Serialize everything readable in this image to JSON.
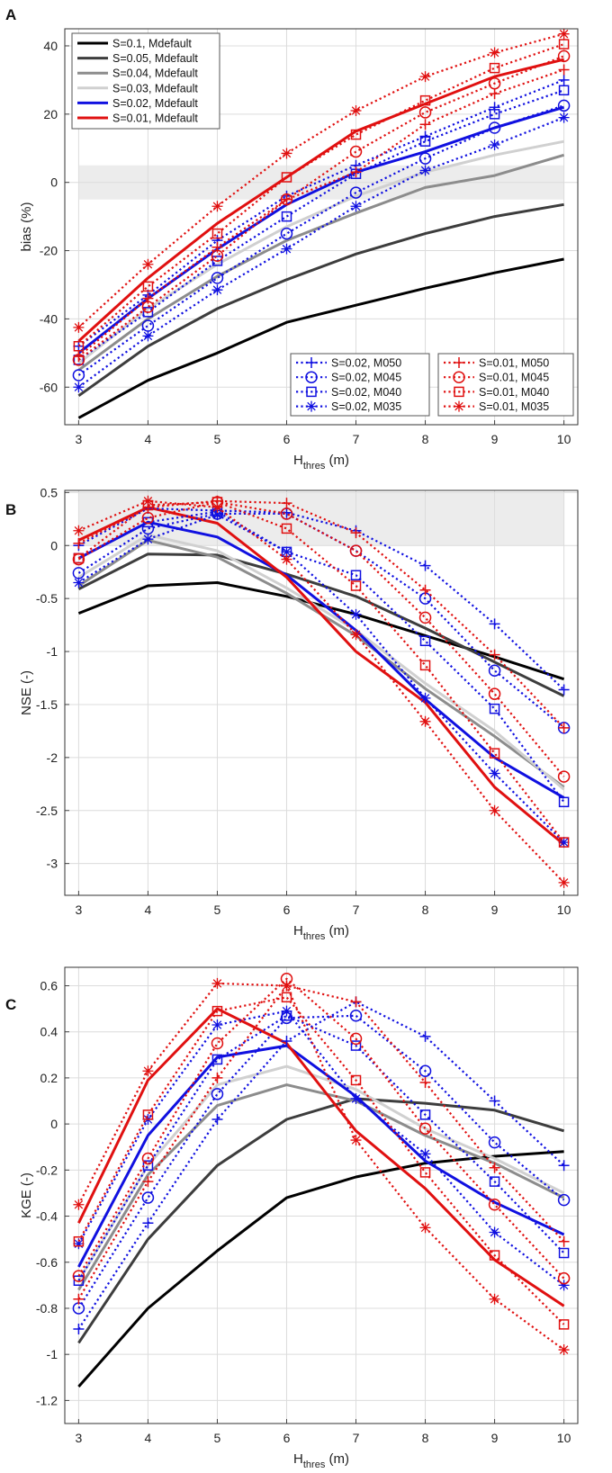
{
  "chart_data": [
    {
      "panel": "A",
      "type": "line",
      "ylabel": "bias (%)",
      "xlabel_main": "H",
      "xlabel_sub": "thres",
      "xlabel_unit": " (m)",
      "x": [
        3,
        4,
        5,
        6,
        7,
        8,
        9,
        10
      ],
      "xlim": [
        2.8,
        10.2
      ],
      "ylim": [
        -71,
        45
      ],
      "yticks": [
        -60,
        -40,
        -20,
        0,
        20,
        40
      ],
      "ytick_labels": [
        "-60",
        "-40",
        "-20",
        "0",
        "20",
        "40"
      ],
      "shade": [
        -5,
        5
      ],
      "legend_main": "top-left",
      "legend_sub": [
        "bottom-middle",
        "bottom-right"
      ],
      "series": [
        {
          "name": "S=0.1, Mdefault",
          "color": "#000000",
          "dash": "solid",
          "marker": "none",
          "values": [
            -69,
            -58,
            -50,
            -41,
            -36,
            -31,
            -26.5,
            -22.5
          ]
        },
        {
          "name": "S=0.05, Mdefault",
          "color": "#3d3d3d",
          "dash": "solid",
          "marker": "none",
          "values": [
            -62.5,
            -48,
            -37,
            -28.5,
            -21,
            -15,
            -10,
            -6.5
          ]
        },
        {
          "name": "S=0.04, Mdefault",
          "color": "#8c8c8c",
          "dash": "solid",
          "marker": "none",
          "values": [
            -55,
            -40,
            -27.5,
            -17,
            -9,
            -1.5,
            2,
            8
          ]
        },
        {
          "name": "S=0.03, Mdefault",
          "color": "#d0d0d0",
          "dash": "solid",
          "marker": "none",
          "values": [
            -53,
            -37,
            -24,
            -13,
            -4,
            3,
            8,
            12
          ]
        },
        {
          "name": "S=0.02, Mdefault",
          "color": "#1010e0",
          "dash": "solid",
          "marker": "none",
          "values": [
            -50,
            -34,
            -19.5,
            -6.5,
            3,
            9,
            16,
            22
          ]
        },
        {
          "name": "S=0.01, Mdefault",
          "color": "#e01010",
          "dash": "solid",
          "marker": "none",
          "values": [
            -46.5,
            -28,
            -12,
            1.5,
            15,
            23,
            31,
            36
          ]
        },
        {
          "name": "S=0.02, M050",
          "color": "#1010e0",
          "dash": "dotted",
          "marker": "plus",
          "values": [
            -48,
            -33,
            -17,
            -4,
            5,
            13.5,
            22,
            30
          ]
        },
        {
          "name": "S=0.02, M045",
          "color": "#1010e0",
          "dash": "dotted",
          "marker": "circle",
          "values": [
            -56.5,
            -42,
            -28,
            -15,
            -3,
            7,
            16,
            22.5
          ]
        },
        {
          "name": "S=0.02, M040",
          "color": "#1010e0",
          "dash": "dotted",
          "marker": "square",
          "values": [
            -52,
            -38,
            -23,
            -10,
            2.5,
            12,
            20,
            27
          ]
        },
        {
          "name": "S=0.02, M035",
          "color": "#1010e0",
          "dash": "dotted",
          "marker": "star",
          "values": [
            -60,
            -45,
            -31.5,
            -19.5,
            -7,
            3.5,
            11,
            19
          ]
        },
        {
          "name": "S=0.01, M050",
          "color": "#e01010",
          "dash": "dotted",
          "marker": "plus",
          "values": [
            -51,
            -34,
            -19,
            -5,
            3,
            17,
            26,
            33
          ]
        },
        {
          "name": "S=0.01, M045",
          "color": "#e01010",
          "dash": "dotted",
          "marker": "circle",
          "values": [
            -52,
            -36.5,
            -21.5,
            -5,
            9,
            20.5,
            29,
            37
          ]
        },
        {
          "name": "S=0.01, M040",
          "color": "#e01010",
          "dash": "dotted",
          "marker": "square",
          "values": [
            -48,
            -30.5,
            -15,
            1.5,
            14,
            24,
            33.5,
            40.5
          ]
        },
        {
          "name": "S=0.01, M035",
          "color": "#e01010",
          "dash": "dotted",
          "marker": "star",
          "values": [
            -42.5,
            -24,
            -7,
            8.5,
            21,
            31,
            38,
            43.5
          ]
        }
      ]
    },
    {
      "panel": "B",
      "type": "line",
      "ylabel": "NSE (-)",
      "xlabel_main": "H",
      "xlabel_sub": "thres",
      "xlabel_unit": " (m)",
      "x": [
        3,
        4,
        5,
        6,
        7,
        8,
        9,
        10
      ],
      "xlim": [
        2.8,
        10.2
      ],
      "ylim": [
        -3.3,
        0.52
      ],
      "yticks": [
        -3,
        -2.5,
        -2,
        -1.5,
        -1,
        -0.5,
        0,
        0.5
      ],
      "ytick_labels": [
        "-3",
        "-2.5",
        "-2",
        "-1.5",
        "-1",
        "-0.5",
        "0",
        "0.5"
      ],
      "shade": [
        0,
        0.5
      ],
      "series": [
        {
          "name": "S=0.1, Mdefault",
          "color": "#000000",
          "dash": "solid",
          "marker": "none",
          "values": [
            -0.64,
            -0.38,
            -0.35,
            -0.48,
            -0.65,
            -0.85,
            -1.05,
            -1.26
          ]
        },
        {
          "name": "S=0.05, Mdefault",
          "color": "#3d3d3d",
          "dash": "solid",
          "marker": "none",
          "values": [
            -0.41,
            -0.08,
            -0.09,
            -0.27,
            -0.48,
            -0.78,
            -1.1,
            -1.42
          ]
        },
        {
          "name": "S=0.04, Mdefault",
          "color": "#8c8c8c",
          "dash": "solid",
          "marker": "none",
          "values": [
            -0.38,
            0.05,
            -0.11,
            -0.45,
            -0.85,
            -1.35,
            -1.8,
            -2.28
          ]
        },
        {
          "name": "S=0.03, Mdefault",
          "color": "#d0d0d0",
          "dash": "solid",
          "marker": "none",
          "values": [
            -0.3,
            0.1,
            -0.05,
            -0.4,
            -0.8,
            -1.3,
            -1.75,
            -2.3
          ]
        },
        {
          "name": "S=0.02, Mdefault",
          "color": "#1010e0",
          "dash": "solid",
          "marker": "none",
          "values": [
            -0.12,
            0.22,
            0.08,
            -0.28,
            -0.8,
            -1.45,
            -2.0,
            -2.38
          ]
        },
        {
          "name": "S=0.01, Mdefault",
          "color": "#e01010",
          "dash": "solid",
          "marker": "none",
          "values": [
            0.05,
            0.36,
            0.21,
            -0.3,
            -1.0,
            -1.48,
            -2.28,
            -2.82
          ]
        },
        {
          "name": "S=0.02, M050",
          "color": "#1010e0",
          "dash": "dotted",
          "marker": "plus",
          "values": [
            0.0,
            0.35,
            0.33,
            0.31,
            0.14,
            -0.19,
            -0.74,
            -1.36
          ]
        },
        {
          "name": "S=0.02, M045",
          "color": "#1010e0",
          "dash": "dotted",
          "marker": "circle",
          "values": [
            -0.26,
            0.16,
            0.3,
            0.3,
            -0.05,
            -0.5,
            -1.18,
            -1.72
          ]
        },
        {
          "name": "S=0.02, M040",
          "color": "#1010e0",
          "dash": "dotted",
          "marker": "square",
          "values": [
            -0.12,
            0.22,
            0.32,
            -0.06,
            -0.28,
            -0.9,
            -1.54,
            -2.42
          ]
        },
        {
          "name": "S=0.02, M035",
          "color": "#1010e0",
          "dash": "dotted",
          "marker": "star",
          "values": [
            -0.35,
            0.06,
            0.29,
            -0.06,
            -0.65,
            -1.44,
            -2.15,
            -2.8
          ]
        },
        {
          "name": "S=0.01, M050",
          "color": "#e01010",
          "dash": "dotted",
          "marker": "plus",
          "values": [
            0.02,
            0.36,
            0.42,
            0.4,
            0.12,
            -0.42,
            -1.03,
            -1.72
          ]
        },
        {
          "name": "S=0.01, M045",
          "color": "#e01010",
          "dash": "dotted",
          "marker": "circle",
          "values": [
            -0.13,
            0.26,
            0.41,
            0.3,
            -0.05,
            -0.68,
            -1.4,
            -2.18
          ]
        },
        {
          "name": "S=0.01, M040",
          "color": "#e01010",
          "dash": "dotted",
          "marker": "square",
          "values": [
            -0.12,
            0.38,
            0.41,
            0.16,
            -0.38,
            -1.13,
            -1.96,
            -2.8
          ]
        },
        {
          "name": "S=0.01, M035",
          "color": "#e01010",
          "dash": "dotted",
          "marker": "star",
          "values": [
            0.14,
            0.42,
            0.36,
            -0.13,
            -0.84,
            -1.66,
            -2.5,
            -3.18
          ]
        }
      ]
    },
    {
      "panel": "C",
      "type": "line",
      "ylabel": "KGE (-)",
      "xlabel_main": "H",
      "xlabel_sub": "thres",
      "xlabel_unit": " (m)",
      "x": [
        3,
        4,
        5,
        6,
        7,
        8,
        9,
        10
      ],
      "xlim": [
        2.8,
        10.2
      ],
      "ylim": [
        -1.3,
        0.68
      ],
      "yticks": [
        -1.2,
        -1,
        -0.8,
        -0.6,
        -0.4,
        -0.2,
        0,
        0.2,
        0.4,
        0.6
      ],
      "ytick_labels": [
        "-1.2",
        "-1",
        "-0.8",
        "-0.6",
        "-0.4",
        "-0.2",
        "0",
        "0.2",
        "0.4",
        "0.6"
      ],
      "series": [
        {
          "name": "S=0.1, Mdefault",
          "color": "#000000",
          "dash": "solid",
          "marker": "none",
          "values": [
            -1.14,
            -0.8,
            -0.55,
            -0.32,
            -0.23,
            -0.17,
            -0.14,
            -0.12
          ]
        },
        {
          "name": "S=0.05, Mdefault",
          "color": "#3d3d3d",
          "dash": "solid",
          "marker": "none",
          "values": [
            -0.95,
            -0.5,
            -0.18,
            0.02,
            0.11,
            0.09,
            0.06,
            -0.03
          ]
        },
        {
          "name": "S=0.04, Mdefault",
          "color": "#8c8c8c",
          "dash": "solid",
          "marker": "none",
          "values": [
            -0.72,
            -0.22,
            0.08,
            0.17,
            0.1,
            -0.05,
            -0.17,
            -0.32
          ]
        },
        {
          "name": "S=0.03, Mdefault",
          "color": "#d0d0d0",
          "dash": "solid",
          "marker": "none",
          "values": [
            -0.68,
            -0.18,
            0.17,
            0.25,
            0.15,
            -0.02,
            -0.15,
            -0.3
          ]
        },
        {
          "name": "S=0.02, Mdefault",
          "color": "#1010e0",
          "dash": "solid",
          "marker": "none",
          "values": [
            -0.62,
            -0.05,
            0.29,
            0.34,
            0.12,
            -0.16,
            -0.34,
            -0.48
          ]
        },
        {
          "name": "S=0.01, Mdefault",
          "color": "#e01010",
          "dash": "solid",
          "marker": "none",
          "values": [
            -0.43,
            0.19,
            0.5,
            0.35,
            -0.03,
            -0.28,
            -0.59,
            -0.79
          ]
        },
        {
          "name": "S=0.02, M050",
          "color": "#1010e0",
          "dash": "dotted",
          "marker": "plus",
          "values": [
            -0.89,
            -0.43,
            0.02,
            0.36,
            0.53,
            0.38,
            0.1,
            -0.18
          ]
        },
        {
          "name": "S=0.02, M045",
          "color": "#1010e0",
          "dash": "dotted",
          "marker": "circle",
          "values": [
            -0.8,
            -0.32,
            0.13,
            0.46,
            0.47,
            0.23,
            -0.08,
            -0.33
          ]
        },
        {
          "name": "S=0.02, M040",
          "color": "#1010e0",
          "dash": "dotted",
          "marker": "square",
          "values": [
            -0.68,
            -0.18,
            0.28,
            0.47,
            0.34,
            0.04,
            -0.25,
            -0.56
          ]
        },
        {
          "name": "S=0.02, M035",
          "color": "#1010e0",
          "dash": "dotted",
          "marker": "star",
          "values": [
            -0.52,
            0.02,
            0.43,
            0.49,
            0.11,
            -0.13,
            -0.47,
            -0.7
          ]
        },
        {
          "name": "S=0.01, M050",
          "color": "#e01010",
          "dash": "dotted",
          "marker": "plus",
          "values": [
            -0.76,
            -0.25,
            0.2,
            0.6,
            0.53,
            0.18,
            -0.19,
            -0.51
          ]
        },
        {
          "name": "S=0.01, M045",
          "color": "#e01010",
          "dash": "dotted",
          "marker": "circle",
          "values": [
            -0.66,
            -0.15,
            0.35,
            0.63,
            0.37,
            -0.02,
            -0.35,
            -0.67
          ]
        },
        {
          "name": "S=0.01, M040",
          "color": "#e01010",
          "dash": "dotted",
          "marker": "square",
          "values": [
            -0.51,
            0.04,
            0.49,
            0.55,
            0.19,
            -0.21,
            -0.57,
            -0.87
          ]
        },
        {
          "name": "S=0.01, M035",
          "color": "#e01010",
          "dash": "dotted",
          "marker": "star",
          "values": [
            -0.35,
            0.23,
            0.61,
            0.6,
            -0.07,
            -0.45,
            -0.76,
            -0.98
          ]
        }
      ]
    }
  ]
}
